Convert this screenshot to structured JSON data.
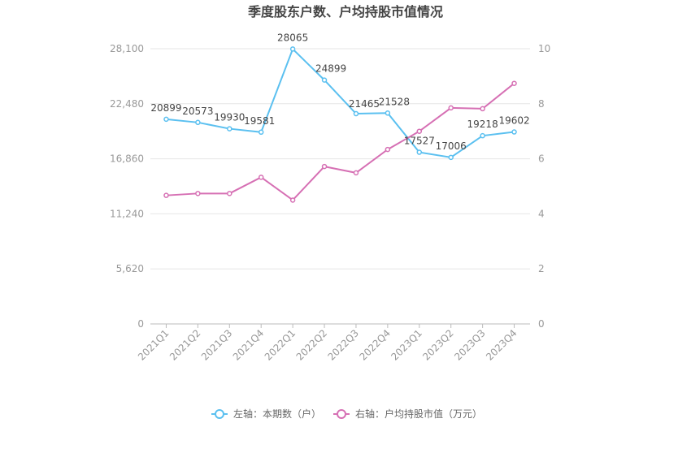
{
  "chart_data": {
    "type": "line",
    "title": "季度股东户数、户均持股市值情况",
    "categories": [
      "2021Q1",
      "2021Q2",
      "2021Q3",
      "2021Q4",
      "2022Q1",
      "2022Q2",
      "2022Q3",
      "2022Q4",
      "2023Q1",
      "2023Q2",
      "2023Q3",
      "2023Q4"
    ],
    "left_axis": {
      "ticks": [
        "0",
        "5,620",
        "11,240",
        "16,860",
        "22,480",
        "28,100"
      ],
      "min": 0,
      "max": 28100
    },
    "right_axis": {
      "ticks": [
        "0",
        "2",
        "4",
        "6",
        "8",
        "10"
      ],
      "min": 0,
      "max": 10
    },
    "series": [
      {
        "name": "左轴：本期数（户）",
        "axis": "left",
        "color": "#5bc0f0",
        "values": [
          20899,
          20573,
          19930,
          19581,
          28065,
          24899,
          21465,
          21528,
          17527,
          17006,
          19218,
          19602
        ],
        "labels": [
          "20899",
          "20573",
          "19930",
          "19581",
          "28065",
          "24899",
          "21465",
          "21528",
          "17527",
          "17006",
          "19218",
          "19602"
        ]
      },
      {
        "name": "右轴：户均持股市值（万元）",
        "axis": "right",
        "color": "#d670b4",
        "values": [
          4.67,
          4.74,
          4.74,
          5.33,
          4.5,
          5.72,
          5.49,
          6.34,
          7.0,
          7.85,
          7.82,
          8.74
        ]
      }
    ],
    "grid": true,
    "legend_position": "bottom"
  }
}
